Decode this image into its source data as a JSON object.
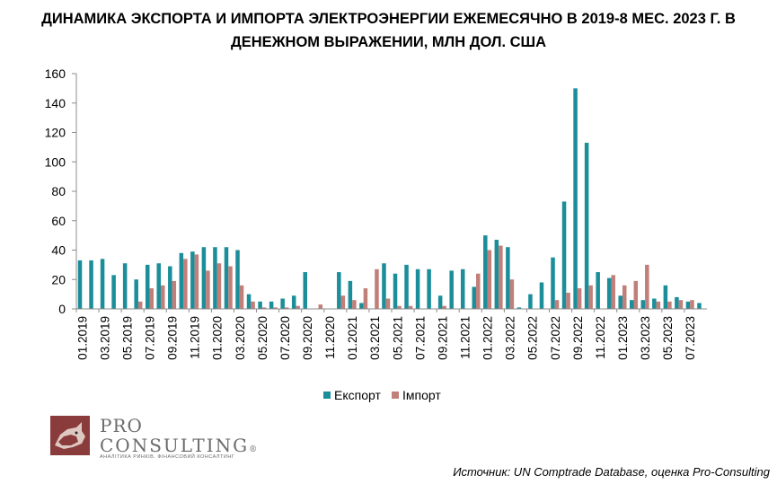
{
  "header": {
    "title_line1": "ДИНАМИКА ЭКСПОРТА И ИМПОРТА ЭЛЕКТРОЭНЕРГИИ ЕЖЕМЕСЯЧНО В 2019-8 МЕС. 2023 Г. В",
    "title_line2": "ДЕНЕЖНОМ ВЫРАЖЕНИИ, МЛН ДОЛ. США"
  },
  "source": "Источник: UN Comptrade Database, оценка Pro-Consulting",
  "logo": {
    "pro": "PRO",
    "consulting": "CONSULTING",
    "registered": "®",
    "tagline": "АНАЛІТИКА РИНКІВ. ФІНАНСОВИЙ КОНСАЛТИНГ"
  },
  "chart_data": {
    "type": "bar",
    "title": "ДИНАМИКА ЭКСПОРТА И ИМПОРТА ЭЛЕКТРОЭНЕРГИИ ЕЖЕМЕСЯЧНО В 2019-8 МЕС. 2023 Г. В ДЕНЕЖНОМ ВЫРАЖЕНИИ, МЛН ДОЛ. США",
    "categories": [
      "01.2019",
      "02.2019",
      "03.2019",
      "04.2019",
      "05.2019",
      "06.2019",
      "07.2019",
      "08.2019",
      "09.2019",
      "10.2019",
      "11.2019",
      "12.2019",
      "01.2020",
      "02.2020",
      "03.2020",
      "04.2020",
      "05.2020",
      "06.2020",
      "07.2020",
      "08.2020",
      "09.2020",
      "10.2020",
      "11.2020",
      "12.2020",
      "01.2021",
      "02.2021",
      "03.2021",
      "04.2021",
      "05.2021",
      "06.2021",
      "07.2021",
      "08.2021",
      "09.2021",
      "10.2021",
      "11.2021",
      "12.2021",
      "01.2022",
      "02.2022",
      "03.2022",
      "04.2022",
      "05.2022",
      "06.2022",
      "07.2022",
      "08.2022",
      "09.2022",
      "10.2022",
      "11.2022",
      "12.2022",
      "01.2023",
      "02.2023",
      "03.2023",
      "04.2023",
      "05.2023",
      "06.2023",
      "07.2023",
      "08.2023"
    ],
    "tick_labels": [
      "01.2019",
      "03.2019",
      "05.2019",
      "07.2019",
      "09.2019",
      "11.2019",
      "01.2020",
      "03.2020",
      "05.2020",
      "07.2020",
      "09.2020",
      "11.2020",
      "01.2021",
      "03.2021",
      "05.2021",
      "07.2021",
      "09.2021",
      "11.2021",
      "01.2022",
      "03.2022",
      "05.2022",
      "07.2022",
      "09.2022",
      "11.2022",
      "01.2023",
      "03.2023",
      "05.2023",
      "07.2023"
    ],
    "series": [
      {
        "name": "Експорт",
        "color": "#1b8e9a",
        "values": [
          33,
          33,
          34,
          23,
          31,
          20,
          30,
          31,
          29,
          38,
          39,
          42,
          42,
          42,
          40,
          10,
          5,
          5,
          7,
          9,
          25,
          0,
          0,
          25,
          19,
          4,
          0,
          31,
          24,
          30,
          27,
          27,
          9,
          26,
          27,
          15,
          50,
          47,
          42,
          1,
          10,
          18,
          35,
          73,
          150,
          113,
          25,
          21,
          9,
          6,
          6,
          7,
          16,
          8,
          5,
          4
        ]
      },
      {
        "name": "Імпорт",
        "color": "#c17f7a",
        "values": [
          0,
          0,
          0,
          0,
          0,
          5,
          14,
          16,
          19,
          34,
          37,
          26,
          31,
          29,
          16,
          5,
          1,
          1,
          1,
          2,
          0,
          3,
          0,
          9,
          6,
          14,
          27,
          7,
          2,
          2,
          0,
          0,
          2,
          0,
          0,
          24,
          40,
          43,
          20,
          0,
          0,
          0,
          6,
          11,
          14,
          16,
          0,
          23,
          16,
          19,
          30,
          5,
          5,
          6,
          6,
          0
        ]
      }
    ],
    "ylim": [
      0,
      160
    ],
    "yticks": [
      0,
      20,
      40,
      60,
      80,
      100,
      120,
      140,
      160
    ],
    "xlabel": "",
    "ylabel": "",
    "grid": false,
    "legend_position": "bottom-center"
  }
}
